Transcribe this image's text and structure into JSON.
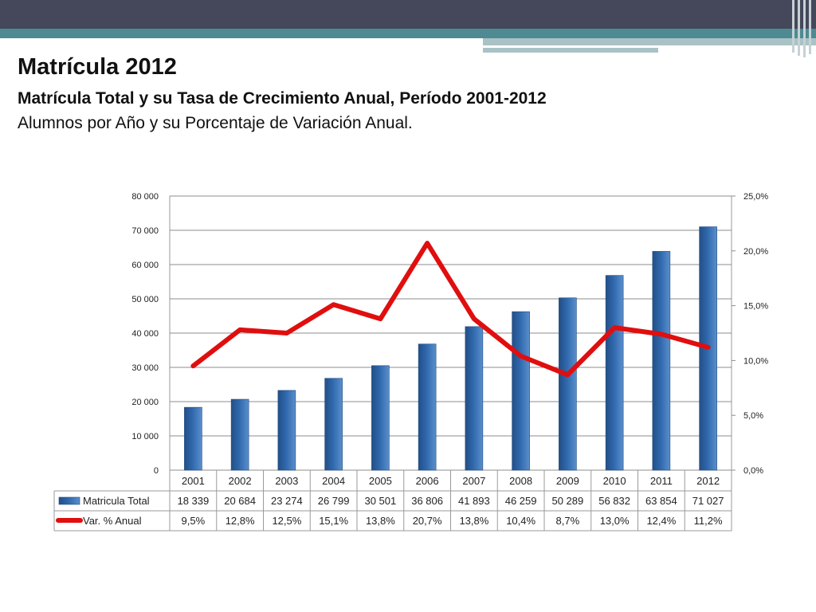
{
  "slide": {
    "title": "Matrícula 2012",
    "subtitle": "Matrícula Total y su Tasa de Crecimiento Anual, Período 2001-2012",
    "description": "Alumnos por Año y su Porcentaje de Variación Anual."
  },
  "colors": {
    "header_dark": "#45475a",
    "header_teal": "#4e8a91",
    "header_light": "#a9c2c6",
    "bar_fill": "#2f68ad",
    "line": "#e00e0e"
  },
  "chart_data": {
    "type": "bar",
    "categories": [
      "2001",
      "2002",
      "2003",
      "2004",
      "2005",
      "2006",
      "2007",
      "2008",
      "2009",
      "2010",
      "2011",
      "2012"
    ],
    "series": [
      {
        "name": "Matricula Total",
        "type": "bar",
        "axis": "left",
        "values": [
          18339,
          20684,
          23274,
          26799,
          30501,
          36806,
          41893,
          46259,
          50289,
          56832,
          63854,
          71027
        ],
        "labels": [
          "18 339",
          "20 684",
          "23 274",
          "26 799",
          "30 501",
          "36 806",
          "41 893",
          "46 259",
          "50 289",
          "56 832",
          "63 854",
          "71 027"
        ]
      },
      {
        "name": "Var. % Anual",
        "type": "line",
        "axis": "right",
        "values": [
          9.5,
          12.8,
          12.5,
          15.1,
          13.8,
          20.7,
          13.8,
          10.4,
          8.7,
          13.0,
          12.4,
          11.2
        ],
        "labels": [
          "9,5%",
          "12,8%",
          "12,5%",
          "15,1%",
          "13,8%",
          "20,7%",
          "13,8%",
          "10,4%",
          "8,7%",
          "13,0%",
          "12,4%",
          "11,2%"
        ]
      }
    ],
    "ylim": [
      0,
      80000
    ],
    "y_ticks": [
      0,
      10000,
      20000,
      30000,
      40000,
      50000,
      60000,
      70000,
      80000
    ],
    "y_tick_labels": [
      "0",
      "10 000",
      "20 000",
      "30 000",
      "40 000",
      "50 000",
      "60 000",
      "70 000",
      "80 000"
    ],
    "y2lim": [
      0,
      25
    ],
    "y2_ticks": [
      0,
      5,
      10,
      15,
      20,
      25
    ],
    "y2_tick_labels": [
      "0,0%",
      "5,0%",
      "10,0%",
      "15,0%",
      "20,0%",
      "25,0%"
    ],
    "grid": true,
    "legend": "data-table"
  }
}
